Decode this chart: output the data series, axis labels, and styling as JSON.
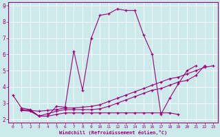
{
  "xlabel": "Windchill (Refroidissement éolien,°C)",
  "bg_color": "#cce9ec",
  "line_color": "#990077",
  "xlim": [
    -0.5,
    23.5
  ],
  "ylim": [
    1.8,
    9.2
  ],
  "yticks": [
    2,
    3,
    4,
    5,
    6,
    7,
    8,
    9
  ],
  "xticks": [
    0,
    1,
    2,
    3,
    4,
    5,
    6,
    7,
    8,
    9,
    10,
    11,
    12,
    13,
    14,
    15,
    16,
    17,
    18,
    19,
    20,
    21,
    22,
    23
  ],
  "series": [
    {
      "x": [
        0,
        1,
        2,
        3,
        4,
        5,
        6,
        7,
        8,
        9,
        10,
        11,
        12,
        13,
        14,
        15,
        16,
        17,
        18,
        19,
        20,
        21,
        22
      ],
      "y": [
        3.5,
        2.7,
        2.6,
        2.2,
        2.2,
        2.8,
        2.75,
        6.2,
        3.8,
        7.0,
        8.4,
        8.5,
        8.8,
        8.7,
        8.7,
        7.2,
        6.0,
        2.3,
        3.3,
        4.2,
        5.0,
        5.3,
        null
      ]
    },
    {
      "x": [
        1,
        2,
        3,
        4,
        5,
        6,
        7,
        8,
        9,
        10,
        11,
        12,
        13,
        14,
        15,
        16,
        17,
        18,
        19,
        20,
        21,
        22,
        23
      ],
      "y": [
        2.6,
        2.55,
        2.5,
        2.55,
        2.6,
        2.7,
        2.7,
        2.75,
        2.8,
        2.9,
        3.1,
        3.3,
        3.5,
        3.7,
        3.9,
        4.1,
        4.3,
        4.5,
        4.6,
        4.8,
        5.0,
        5.2,
        5.3
      ]
    },
    {
      "x": [
        1,
        2,
        3,
        4,
        5,
        6,
        7,
        8,
        9,
        10,
        11,
        12,
        13,
        14,
        15,
        16,
        17,
        18,
        19
      ],
      "y": [
        2.55,
        2.5,
        2.2,
        2.2,
        2.3,
        2.4,
        2.4,
        2.4,
        2.4,
        2.4,
        2.4,
        2.4,
        2.4,
        2.4,
        2.4,
        2.4,
        2.4,
        2.4,
        2.3
      ]
    },
    {
      "x": [
        1,
        2,
        3,
        4,
        5,
        6,
        7,
        8,
        9,
        10,
        11,
        12,
        13,
        14,
        15,
        16,
        17,
        18,
        19,
        20,
        21,
        22
      ],
      "y": [
        2.6,
        2.55,
        2.2,
        2.35,
        2.5,
        2.6,
        2.6,
        2.6,
        2.6,
        2.65,
        2.8,
        3.0,
        3.2,
        3.4,
        3.6,
        3.8,
        3.9,
        4.1,
        4.3,
        4.4,
        4.7,
        5.3
      ]
    }
  ]
}
